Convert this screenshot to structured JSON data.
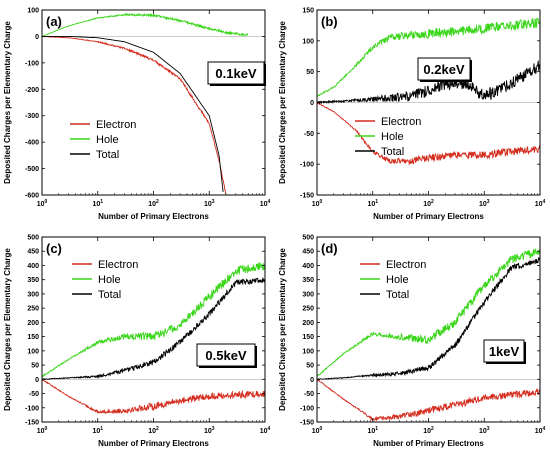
{
  "figure": {
    "y_axis_label": "Deposited Charges per Elementary Charge",
    "x_axis_label": "Number of Primary Electrons"
  },
  "colors": {
    "electron": "#d42c1e",
    "hole": "#3ad61a",
    "total": "#000000"
  },
  "chart_data": [
    {
      "type": "line",
      "panel_label": "(a)",
      "energy_label": "0.1keV",
      "xscale": "log",
      "xlim": [
        1,
        10000
      ],
      "ylim": [
        -600,
        100
      ],
      "yticks": [
        100,
        0,
        -100,
        -200,
        -300,
        -400,
        -500,
        -600
      ],
      "xticks": [
        1,
        10,
        100,
        1000,
        10000
      ],
      "xtick_labels": [
        "10^0",
        "10^1",
        "10^2",
        "10^3",
        "10^4"
      ],
      "xlabel": "Number of Primary Electrons",
      "legend_position": "left-middle",
      "series": [
        {
          "name": "Electron",
          "color": "#d42c1e",
          "noise": 4,
          "x": [
            1,
            3,
            10,
            30,
            100,
            300,
            1000,
            1500,
            2000
          ],
          "y": [
            0,
            -5,
            -20,
            -45,
            -90,
            -160,
            -330,
            -470,
            -600
          ]
        },
        {
          "name": "Hole",
          "color": "#3ad61a",
          "noise": 4,
          "x": [
            1,
            3,
            10,
            30,
            100,
            300,
            1000,
            2000,
            5000
          ],
          "y": [
            0,
            40,
            70,
            82,
            80,
            60,
            30,
            15,
            5
          ]
        },
        {
          "name": "Total",
          "color": "#000000",
          "noise": 0,
          "x": [
            1,
            3,
            10,
            30,
            100,
            300,
            1000,
            1500,
            1800
          ],
          "y": [
            0,
            0,
            -5,
            -20,
            -60,
            -140,
            -300,
            -450,
            -600
          ]
        }
      ]
    },
    {
      "type": "line",
      "panel_label": "(b)",
      "energy_label": "0.2keV",
      "xscale": "log",
      "xlim": [
        1,
        10000
      ],
      "ylim": [
        -150,
        150
      ],
      "yticks": [
        150,
        100,
        50,
        0,
        -50,
        -100,
        -150
      ],
      "xticks": [
        1,
        10,
        100,
        1000,
        10000
      ],
      "xtick_labels": [
        "10^0",
        "10^1",
        "10^2",
        "10^3",
        "10^4"
      ],
      "xlabel": "Number of Primary Electrons",
      "legend_position": "center",
      "series": [
        {
          "name": "Electron",
          "color": "#d42c1e",
          "noise": 6,
          "x": [
            1,
            2,
            5,
            10,
            20,
            50,
            100,
            300,
            1000,
            3000,
            10000
          ],
          "y": [
            0,
            -15,
            -45,
            -80,
            -95,
            -95,
            -90,
            -85,
            -85,
            -80,
            -75
          ]
        },
        {
          "name": "Hole",
          "color": "#3ad61a",
          "noise": 8,
          "x": [
            1,
            2,
            5,
            10,
            20,
            50,
            100,
            300,
            1000,
            3000,
            10000
          ],
          "y": [
            10,
            25,
            60,
            90,
            105,
            110,
            112,
            115,
            120,
            125,
            130
          ]
        },
        {
          "name": "Total",
          "color": "#000000",
          "noise": 10,
          "x": [
            1,
            10,
            50,
            100,
            200,
            500,
            1000,
            3000,
            10000
          ],
          "y": [
            0,
            5,
            10,
            20,
            30,
            30,
            10,
            30,
            60
          ]
        }
      ]
    },
    {
      "type": "line",
      "panel_label": "(c)",
      "energy_label": "0.5keV",
      "xscale": "log",
      "xlim": [
        1,
        10000
      ],
      "ylim": [
        -150,
        500
      ],
      "yticks": [
        500,
        450,
        400,
        350,
        300,
        250,
        200,
        150,
        100,
        50,
        0,
        -50,
        -100,
        -150
      ],
      "xticks": [
        1,
        10,
        100,
        1000,
        10000
      ],
      "xtick_labels": [
        "10^0",
        "10^1",
        "10^2",
        "10^3",
        "10^4"
      ],
      "xlabel": "Number of Primary Electrons",
      "legend_position": "top-left",
      "series": [
        {
          "name": "Electron",
          "color": "#d42c1e",
          "noise": 12,
          "x": [
            1,
            3,
            10,
            30,
            100,
            300,
            1000,
            3000,
            10000
          ],
          "y": [
            0,
            -60,
            -115,
            -110,
            -95,
            -75,
            -60,
            -55,
            -50
          ]
        },
        {
          "name": "Hole",
          "color": "#3ad61a",
          "noise": 15,
          "x": [
            1,
            3,
            10,
            30,
            100,
            300,
            1000,
            3000,
            10000
          ],
          "y": [
            10,
            70,
            130,
            150,
            150,
            190,
            290,
            380,
            400
          ]
        },
        {
          "name": "Total",
          "color": "#000000",
          "noise": 10,
          "x": [
            1,
            3,
            10,
            30,
            100,
            300,
            1000,
            3000,
            10000
          ],
          "y": [
            0,
            5,
            10,
            30,
            60,
            130,
            230,
            340,
            350
          ]
        }
      ]
    },
    {
      "type": "line",
      "panel_label": "(d)",
      "energy_label": "1keV",
      "xscale": "log",
      "xlim": [
        1,
        10000
      ],
      "ylim": [
        -150,
        500
      ],
      "yticks": [
        500,
        450,
        400,
        350,
        300,
        250,
        200,
        150,
        100,
        50,
        0,
        -50,
        -100,
        -150
      ],
      "xticks": [
        1,
        10,
        100,
        1000,
        10000
      ],
      "xtick_labels": [
        "10^0",
        "10^1",
        "10^2",
        "10^3",
        "10^4"
      ],
      "xlabel": "Number of Primary Electrons",
      "legend_position": "top-center",
      "series": [
        {
          "name": "Electron",
          "color": "#d42c1e",
          "noise": 12,
          "x": [
            1,
            3,
            10,
            30,
            100,
            300,
            1000,
            3000,
            10000
          ],
          "y": [
            0,
            -70,
            -140,
            -130,
            -110,
            -90,
            -65,
            -55,
            -45
          ]
        },
        {
          "name": "Hole",
          "color": "#3ad61a",
          "noise": 15,
          "x": [
            1,
            3,
            10,
            30,
            100,
            300,
            1000,
            3000,
            10000
          ],
          "y": [
            10,
            90,
            160,
            150,
            140,
            200,
            330,
            420,
            450
          ]
        },
        {
          "name": "Total",
          "color": "#000000",
          "noise": 10,
          "x": [
            1,
            3,
            10,
            30,
            100,
            300,
            1000,
            3000,
            10000
          ],
          "y": [
            0,
            5,
            15,
            20,
            40,
            120,
            270,
            390,
            420
          ]
        }
      ]
    }
  ]
}
